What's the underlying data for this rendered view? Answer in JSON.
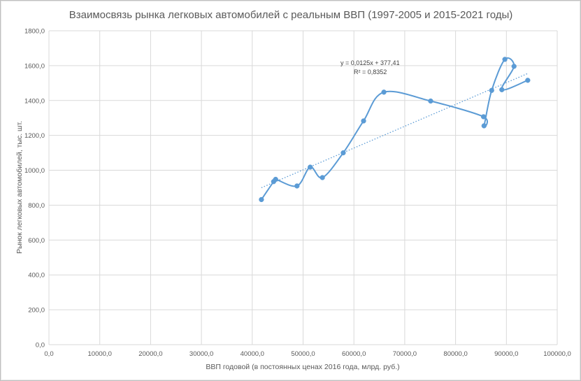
{
  "chart_data": {
    "type": "scatter",
    "title": "Взаимосвязь рынка легковых автомобилей с реальным ВВП (1997-2005 и 2015-2021 годы)",
    "xlabel": "ВВП годовой (в постоянных ценах 2016 года, млрд. руб.)",
    "ylabel": "Рынок легковых автомобилей, тыс. шт.",
    "xlim": [
      0,
      100000
    ],
    "ylim": [
      0,
      1800
    ],
    "x_ticks": [
      "0,0",
      "10000,0",
      "20000,0",
      "30000,0",
      "40000,0",
      "50000,0",
      "60000,0",
      "70000,0",
      "80000,0",
      "90000,0",
      "100000,0"
    ],
    "y_ticks": [
      "0,0",
      "200,0",
      "400,0",
      "600,0",
      "800,0",
      "1000,0",
      "1200,0",
      "1400,0",
      "1600,0",
      "1800,0"
    ],
    "grid": true,
    "line_style": "smoothed",
    "series": [
      {
        "points": [
          {
            "x": 41800,
            "y": 832
          },
          {
            "x": 44200,
            "y": 935
          },
          {
            "x": 44600,
            "y": 948
          },
          {
            "x": 48800,
            "y": 910
          },
          {
            "x": 51400,
            "y": 1018
          },
          {
            "x": 53800,
            "y": 958
          },
          {
            "x": 57900,
            "y": 1100
          },
          {
            "x": 61900,
            "y": 1283
          },
          {
            "x": 65900,
            "y": 1448
          },
          {
            "x": 75100,
            "y": 1397
          },
          {
            "x": 85500,
            "y": 1307
          },
          {
            "x": 85600,
            "y": 1255
          },
          {
            "x": 87100,
            "y": 1458
          },
          {
            "x": 89700,
            "y": 1636
          },
          {
            "x": 91500,
            "y": 1596
          },
          {
            "x": 89100,
            "y": 1462
          },
          {
            "x": 94200,
            "y": 1516
          }
        ]
      }
    ],
    "trendline": {
      "type": "linear",
      "slope": 0.0125,
      "intercept": 377.41,
      "x_range": [
        41800,
        94200
      ],
      "equation": "y = 0,0125x + 377,41",
      "r_squared": "R² = 0,8352"
    },
    "colors": {
      "series": "#5b9bd5",
      "trendline": "#5b9bd5",
      "grid": "#d9d9d9",
      "text": "#595959"
    }
  }
}
